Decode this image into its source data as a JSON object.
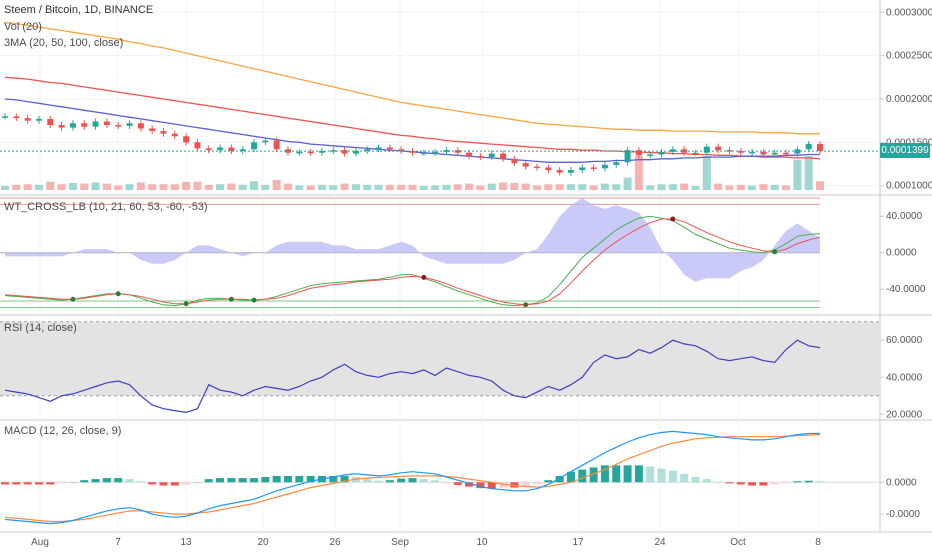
{
  "header": {
    "title": "Steem / Bitcoin, 1D, BINANCE",
    "vol_label": "Vol (20)",
    "ma_label": "3MA (20, 50, 100, close)"
  },
  "price_axis": {
    "ticks": [
      "0.0003000",
      "0.0002500",
      "0.0002000",
      "0.0001500",
      "0.0001000"
    ],
    "last_price": "0.0001399"
  },
  "wt_panel": {
    "label": "WT_CROSS_LB (10, 21, 60, 53, -60, -53)",
    "ticks": [
      "40.0000",
      "0.0000",
      "-40.0000"
    ]
  },
  "rsi_panel": {
    "label": "RSI (14, close)",
    "ticks": [
      "60.0000",
      "40.0000",
      "20.0000"
    ]
  },
  "macd_panel": {
    "label": "MACD (12, 26, close, 9)",
    "ticks": [
      "0.0000",
      "-0.0000"
    ]
  },
  "x_axis": {
    "labels": [
      "Aug",
      "7",
      "13",
      "20",
      "26",
      "Sep",
      "10",
      "17",
      "24",
      "Oct",
      "8"
    ]
  },
  "colors": {
    "up": "#26a69a",
    "down": "#ef5350",
    "ma20": "#5b5fd6",
    "ma50": "#ef5350",
    "ma100": "#f7a541",
    "wt1": "#4caf50",
    "wt2": "#ef5350",
    "rsi": "#3f3fbf",
    "macd": "#2196f3",
    "signal": "#ff8a3d"
  },
  "chart_data": {
    "type": "line",
    "rsi": {
      "values": [
        33,
        32,
        31,
        29,
        27,
        30,
        31,
        33,
        35,
        37,
        38,
        36,
        30,
        25,
        23,
        22,
        21,
        23,
        36,
        33,
        32,
        30,
        33,
        35,
        34,
        33,
        35,
        38,
        40,
        44,
        47,
        43,
        41,
        40,
        42,
        43,
        42,
        44,
        41,
        45,
        43,
        41,
        40,
        38,
        33,
        30,
        29,
        32,
        35,
        33,
        36,
        40,
        48,
        52,
        50,
        51,
        55,
        53,
        56,
        60,
        58,
        57,
        54,
        50,
        49,
        50,
        51,
        49,
        48,
        55,
        60,
        57,
        56
      ]
    },
    "macd": {
      "macd_line": [
        -0.35,
        -0.36,
        -0.37,
        -0.38,
        -0.39,
        -0.38,
        -0.36,
        -0.33,
        -0.3,
        -0.27,
        -0.25,
        -0.24,
        -0.26,
        -0.3,
        -0.32,
        -0.33,
        -0.32,
        -0.29,
        -0.25,
        -0.22,
        -0.2,
        -0.18,
        -0.16,
        -0.12,
        -0.08,
        -0.05,
        -0.02,
        0.01,
        0.03,
        0.05,
        0.07,
        0.08,
        0.07,
        0.06,
        0.07,
        0.09,
        0.1,
        0.09,
        0.08,
        0.05,
        0.02,
        -0.01,
        -0.04,
        -0.06,
        -0.07,
        -0.08,
        -0.08,
        -0.06,
        -0.02,
        0.04,
        0.1,
        0.16,
        0.22,
        0.28,
        0.33,
        0.38,
        0.42,
        0.45,
        0.47,
        0.48,
        0.47,
        0.46,
        0.45,
        0.43,
        0.42,
        0.41,
        0.4,
        0.4,
        0.41,
        0.43,
        0.45,
        0.46,
        0.46
      ],
      "signal_line": [
        -0.33,
        -0.34,
        -0.35,
        -0.36,
        -0.37,
        -0.37,
        -0.36,
        -0.35,
        -0.33,
        -0.31,
        -0.29,
        -0.27,
        -0.27,
        -0.28,
        -0.29,
        -0.3,
        -0.3,
        -0.29,
        -0.28,
        -0.26,
        -0.24,
        -0.22,
        -0.2,
        -0.17,
        -0.14,
        -0.11,
        -0.08,
        -0.05,
        -0.03,
        -0.01,
        0.01,
        0.03,
        0.04,
        0.045,
        0.05,
        0.055,
        0.06,
        0.06,
        0.06,
        0.055,
        0.045,
        0.03,
        0.015,
        0.0,
        -0.02,
        -0.03,
        -0.04,
        -0.045,
        -0.04,
        -0.02,
        0.0,
        0.04,
        0.08,
        0.12,
        0.17,
        0.22,
        0.26,
        0.3,
        0.34,
        0.37,
        0.39,
        0.41,
        0.42,
        0.425,
        0.43,
        0.43,
        0.43,
        0.43,
        0.43,
        0.435,
        0.44,
        0.445,
        0.45
      ],
      "histogram": [
        -0.02,
        -0.02,
        -0.02,
        -0.02,
        -0.02,
        -0.01,
        0.0,
        0.02,
        0.03,
        0.04,
        0.04,
        0.03,
        0.01,
        -0.02,
        -0.03,
        -0.03,
        -0.02,
        0.0,
        0.03,
        0.04,
        0.04,
        0.04,
        0.04,
        0.05,
        0.06,
        0.06,
        0.06,
        0.06,
        0.06,
        0.06,
        0.06,
        0.05,
        0.03,
        0.015,
        0.02,
        0.035,
        0.04,
        0.03,
        0.02,
        -0.005,
        -0.025,
        -0.04,
        -0.055,
        -0.06,
        -0.05,
        -0.05,
        -0.04,
        -0.015,
        0.02,
        0.06,
        0.1,
        0.12,
        0.14,
        0.16,
        0.16,
        0.16,
        0.16,
        0.15,
        0.13,
        0.11,
        0.08,
        0.05,
        0.03,
        0.005,
        -0.01,
        -0.02,
        -0.03,
        -0.03,
        -0.02,
        -0.005,
        0.01,
        0.015,
        0.01
      ]
    },
    "wt_cross": {
      "wt1": [
        -47,
        -48,
        -49,
        -50,
        -51,
        -52,
        -51,
        -49,
        -47,
        -45,
        -45,
        -46,
        -50,
        -54,
        -57,
        -58,
        -56,
        -52,
        -50,
        -50,
        -51,
        -52,
        -52,
        -51,
        -48,
        -44,
        -40,
        -36,
        -34,
        -33,
        -32,
        -31,
        -30,
        -29,
        -27,
        -24,
        -24,
        -28,
        -32,
        -37,
        -42,
        -46,
        -50,
        -54,
        -57,
        -58,
        -57,
        -55,
        -48,
        -35,
        -20,
        -5,
        5,
        15,
        25,
        32,
        38,
        40,
        38,
        35,
        28,
        20,
        15,
        10,
        5,
        3,
        1,
        0,
        3,
        10,
        18,
        20,
        21
      ],
      "wt2": [
        -46,
        -47,
        -48,
        -49,
        -50,
        -51,
        -51,
        -50,
        -48,
        -46,
        -45,
        -46,
        -48,
        -51,
        -54,
        -56,
        -56,
        -54,
        -52,
        -51,
        -51,
        -51,
        -52,
        -51,
        -50,
        -47,
        -43,
        -39,
        -37,
        -35,
        -34,
        -32,
        -31,
        -30,
        -29,
        -27,
        -26,
        -27,
        -30,
        -34,
        -39,
        -43,
        -47,
        -51,
        -54,
        -56,
        -57,
        -56,
        -53,
        -45,
        -33,
        -20,
        -8,
        3,
        12,
        20,
        27,
        33,
        37,
        37,
        34,
        28,
        22,
        17,
        12,
        8,
        5,
        2,
        1,
        4,
        10,
        14,
        17
      ]
    },
    "price": {
      "ma20": [
        0.0002,
        0.000199,
        0.000197,
        0.000195,
        0.000193,
        0.000191,
        0.000189,
        0.000187,
        0.000185,
        0.000183,
        0.000181,
        0.000179,
        0.000177,
        0.000175,
        0.000173,
        0.000171,
        0.000169,
        0.000167,
        0.000165,
        0.000163,
        0.000161,
        0.000159,
        0.000157,
        0.000155,
        0.000153,
        0.000151,
        0.00015,
        0.000148,
        0.000147,
        0.000146,
        0.000145,
        0.000144,
        0.000143,
        0.000142,
        0.000141,
        0.00014,
        0.000139,
        0.000138,
        0.000137,
        0.000136,
        0.000135,
        0.000134,
        0.000133,
        0.000132,
        0.000131,
        0.00013,
        0.000129,
        0.000128,
        0.000127,
        0.000127,
        0.000127,
        0.000127,
        0.000128,
        0.000128,
        0.000129,
        0.000129,
        0.00013,
        0.00013,
        0.000131,
        0.000131,
        0.000132,
        0.000132,
        0.000133,
        0.000133,
        0.000133,
        0.000134,
        0.000134,
        0.000134,
        0.000134,
        0.000135,
        0.000135,
        0.000136,
        0.000136
      ],
      "ma50": [
        0.000225,
        0.000224,
        0.000223,
        0.000221,
        0.000219,
        0.000218,
        0.000216,
        0.000214,
        0.000212,
        0.00021,
        0.000208,
        0.000206,
        0.000204,
        0.000202,
        0.0002,
        0.000198,
        0.000196,
        0.000194,
        0.000192,
        0.00019,
        0.000188,
        0.000186,
        0.000184,
        0.000182,
        0.00018,
        0.000178,
        0.000176,
        0.000174,
        0.000172,
        0.00017,
        0.000168,
        0.000166,
        0.000164,
        0.000162,
        0.00016,
        0.000158,
        0.000157,
        0.000155,
        0.000154,
        0.000152,
        0.000151,
        0.00015,
        0.000149,
        0.000148,
        0.000147,
        0.000146,
        0.000145,
        0.000144,
        0.000143,
        0.000142,
        0.000142,
        0.000141,
        0.000141,
        0.00014,
        0.00014,
        0.000139,
        0.000139,
        0.000138,
        0.000138,
        0.000137,
        0.000137,
        0.000136,
        0.000136,
        0.000135,
        0.000135,
        0.000134,
        0.000134,
        0.000133,
        0.000133,
        0.000133,
        0.000132,
        0.000132,
        0.000131
      ],
      "ma100": [
        0.000288,
        0.000287,
        0.000285,
        0.000283,
        0.000281,
        0.000279,
        0.000277,
        0.000275,
        0.000273,
        0.000271,
        0.000269,
        0.000266,
        0.000264,
        0.000261,
        0.000259,
        0.000256,
        0.000253,
        0.00025,
        0.000247,
        0.000244,
        0.000241,
        0.000238,
        0.000235,
        0.000232,
        0.000229,
        0.000226,
        0.000223,
        0.00022,
        0.000217,
        0.000214,
        0.000211,
        0.000208,
        0.000205,
        0.000202,
        0.000199,
        0.000196,
        0.000194,
        0.000192,
        0.00019,
        0.000188,
        0.000186,
        0.000184,
        0.000182,
        0.00018,
        0.000178,
        0.000176,
        0.000174,
        0.000172,
        0.000171,
        0.00017,
        0.000169,
        0.000168,
        0.000167,
        0.000166,
        0.000165,
        0.000165,
        0.000164,
        0.000164,
        0.000164,
        0.000163,
        0.000163,
        0.000163,
        0.000163,
        0.000162,
        0.000162,
        0.000162,
        0.000162,
        0.000161,
        0.000161,
        0.000161,
        0.00016,
        0.00016,
        0.00016
      ],
      "closes": [
        0.00018,
        0.000178,
        0.000175,
        0.000177,
        0.00017,
        0.000167,
        0.000172,
        0.000168,
        0.000174,
        0.00017,
        0.000169,
        0.000172,
        0.000166,
        0.000163,
        0.00016,
        0.000157,
        0.00015,
        0.000143,
        0.000141,
        0.000144,
        0.00014,
        0.000142,
        0.00015,
        0.000152,
        0.000142,
        0.000138,
        0.000139,
        0.000138,
        0.00014,
        0.000141,
        0.000137,
        0.00014,
        0.000142,
        0.000144,
        0.000142,
        0.00014,
        0.000138,
        0.000138,
        0.000139,
        0.000141,
        0.000138,
        0.000134,
        0.000133,
        0.000137,
        0.000131,
        0.000126,
        0.000122,
        0.000121,
        0.000118,
        0.000115,
        0.000118,
        0.000121,
        0.00012,
        0.000124,
        0.000127,
        0.000141,
        0.000135,
        0.000136,
        0.000139,
        0.000142,
        0.000138,
        0.000138,
        0.000145,
        0.000141,
        0.00014,
        0.000138,
        0.000139,
        0.000136,
        0.000138,
        0.000137,
        0.000142,
        0.000148,
        0.00014
      ]
    }
  }
}
